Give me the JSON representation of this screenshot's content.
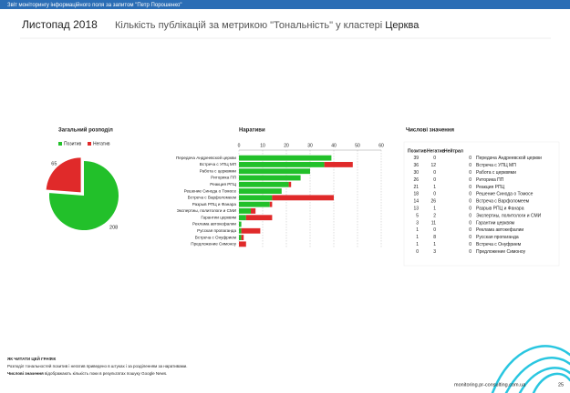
{
  "header": {
    "banner": "Звіт моніторингу інформаційного поля за запитом \"Петр Порошенко\"",
    "period": "Листопад 2018",
    "title": "Кількість публікацій за метрикою \"Тональність\" у кластері ",
    "cluster": "Церква"
  },
  "chart_data": [
    {
      "type": "pie",
      "title": "Загальний розподіл",
      "categories": [
        "Позитив",
        "Негатив"
      ],
      "values": [
        208,
        65
      ],
      "colors": [
        "#22c02a",
        "#e02a2a"
      ],
      "legend": "top"
    },
    {
      "type": "bar",
      "title": "Наративи",
      "orientation": "horizontal",
      "stacked": true,
      "categories": [
        "Передача Андреевской церкви",
        "Встреча с УПЦ МП",
        "Работа с церквями",
        "Риторика ПП",
        "Реакция РПЦ",
        "Решение Синода о Томосе",
        "Встреча с Варфоломеем",
        "Разрыв РПЦ и Фанара",
        "Экспертиы, политологи и СМИ",
        "Гарантии церквям",
        "Реклама автокефалии",
        "Русская пропаганда",
        "Встреча с Онуфрием",
        "Предложение Симоноу"
      ],
      "series": [
        {
          "name": "Позитив",
          "color": "#22c02a",
          "values": [
            39,
            36,
            30,
            26,
            21,
            18,
            14,
            13,
            5,
            3,
            1,
            1,
            1,
            0
          ]
        },
        {
          "name": "Негатив",
          "color": "#e02a2a",
          "values": [
            0,
            12,
            0,
            0,
            1,
            0,
            26,
            1,
            2,
            11,
            0,
            8,
            1,
            3
          ]
        }
      ],
      "xlim": [
        0,
        60
      ],
      "xticks": [
        0,
        10,
        20,
        30,
        40,
        50,
        60
      ],
      "grid": true
    }
  ],
  "table": {
    "title": "Числові значення",
    "columns": [
      "Позитив",
      "Негатив",
      "Нейтрал"
    ],
    "rows": [
      [
        39,
        0,
        0,
        "Передача Андреевской церкви"
      ],
      [
        36,
        12,
        0,
        "Встреча с УПЦ МП"
      ],
      [
        30,
        0,
        0,
        "Работа с церквями"
      ],
      [
        26,
        0,
        0,
        "Риторика ПП"
      ],
      [
        21,
        1,
        0,
        "Реакция РПЦ"
      ],
      [
        18,
        0,
        0,
        "Решение Синода о Томосе"
      ],
      [
        14,
        26,
        0,
        "Встреча с Варфоломеем"
      ],
      [
        13,
        1,
        0,
        "Разрыв РПЦ и Фанара"
      ],
      [
        5,
        2,
        0,
        "Экспертиы, политологи и СМИ"
      ],
      [
        3,
        11,
        0,
        "Гарантии церквям"
      ],
      [
        1,
        0,
        0,
        "Реклама автокефалии"
      ],
      [
        1,
        8,
        0,
        "Русская пропаганда"
      ],
      [
        1,
        1,
        0,
        "Встреча с Онуфрием"
      ],
      [
        0,
        3,
        0,
        "Предложение Симоноу"
      ]
    ]
  },
  "footer": {
    "heading": "ЯК ЧИТАТИ ЦЕЙ ГРАФІК",
    "line1": "Розподіл тональностей позитив і негатив приведено в штуках і за розділенням за наративами.",
    "line2_bold": "Числові значення",
    "line2": " відображають кількість поки в результатах пошуку Google News.",
    "site": "monitoring.pr-consulting.com.ua",
    "page": "25"
  }
}
